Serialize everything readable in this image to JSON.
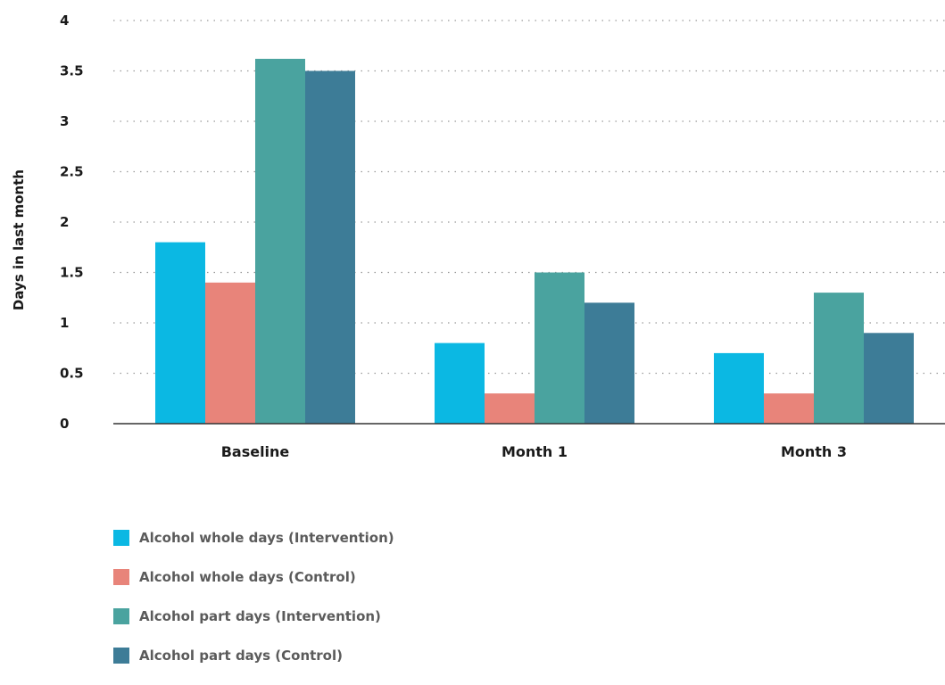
{
  "chart_data": {
    "type": "bar",
    "categories": [
      "Baseline",
      "Month 1",
      "Month 3"
    ],
    "series": [
      {
        "name": "Alcohol  whole days (Intervention)",
        "values": [
          1.8,
          0.8,
          0.7
        ],
        "color": "#0bb8e3"
      },
      {
        "name": "Alcohol  whole days (Control)",
        "values": [
          1.4,
          0.3,
          0.3
        ],
        "color": "#e8847a"
      },
      {
        "name": "Alcohol part days (Intervention)",
        "values": [
          3.62,
          1.5,
          1.3
        ],
        "color": "#4aa39f"
      },
      {
        "name": "Alcohol part days (Control)",
        "values": [
          3.5,
          1.2,
          0.9
        ],
        "color": "#3d7c97"
      }
    ],
    "ylabel": "Days in last month",
    "xlabel": "",
    "ylim": [
      0,
      4
    ],
    "yticks": [
      "0",
      "0.5",
      "1",
      "1.5",
      "2",
      "2.5",
      "3",
      "3.5",
      "4"
    ],
    "grid": "horizontal dotted",
    "legend_position": "bottom-left"
  }
}
